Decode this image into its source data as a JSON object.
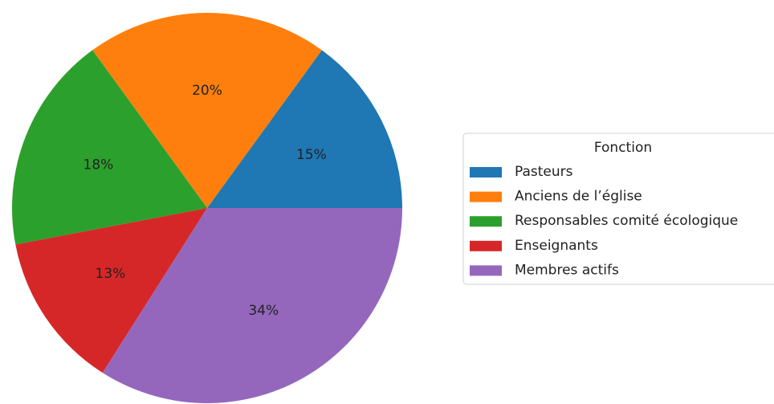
{
  "chart_data": {
    "type": "pie",
    "categories": [
      "Pasteurs",
      "Anciens de l’église",
      "Responsables comité écologique",
      "Enseignants",
      "Membres actifs"
    ],
    "values": [
      15,
      20,
      18,
      13,
      34
    ],
    "value_labels": [
      "15%",
      "20%",
      "18%",
      "13%",
      "34%"
    ],
    "colors": [
      "#1f77b4",
      "#ff7f0e",
      "#2ca02c",
      "#d62728",
      "#9467bd"
    ],
    "legend_title": "Fonction",
    "legend_position": "right"
  }
}
